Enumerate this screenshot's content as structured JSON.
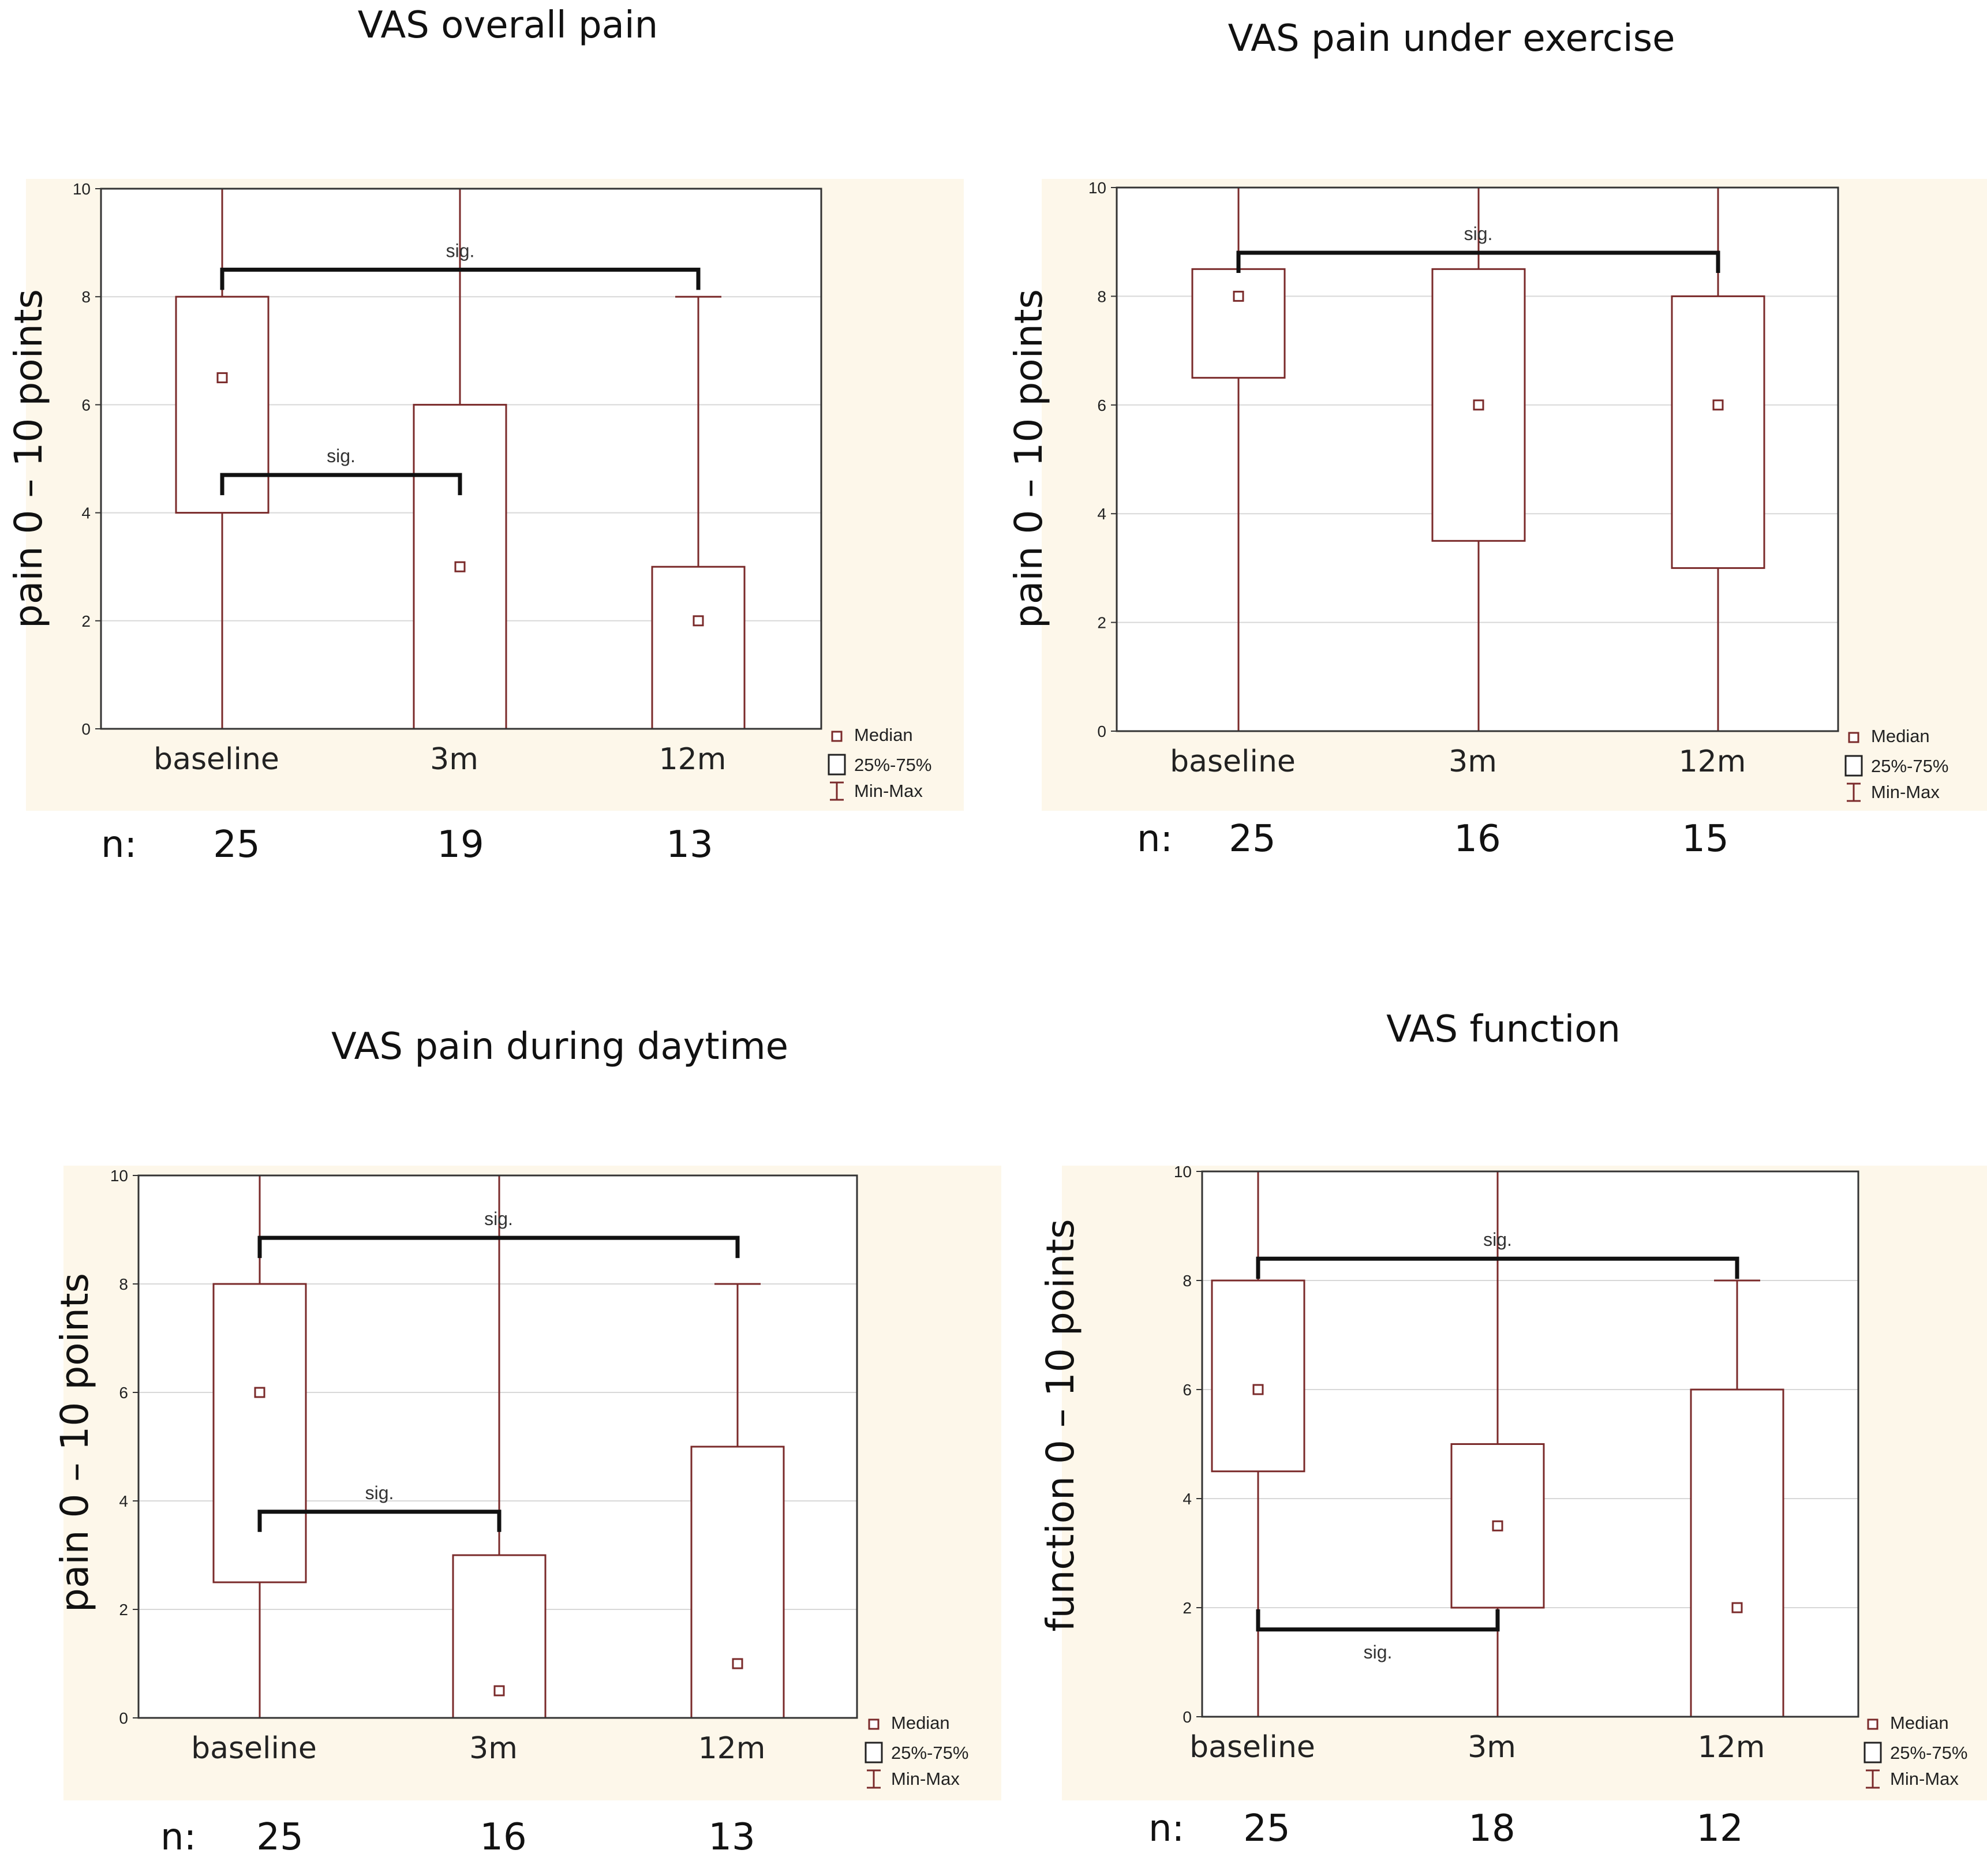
{
  "figure": {
    "legend": {
      "median": "Median",
      "box": "25%-75%",
      "whisker": "Min-Max"
    },
    "colors": {
      "box_stroke": "#7a2a2a",
      "bracket": "#111111",
      "grid": "#d8d8d8",
      "panel_bg": "#fdf7ea"
    }
  },
  "chart_data": [
    {
      "type": "box",
      "title": "VAS overall pain",
      "ylabel": "pain 0 – 10 points",
      "ylim": [
        0,
        10
      ],
      "yticks": [
        "0",
        "2",
        "4",
        "6",
        "8",
        "10"
      ],
      "categories": [
        "baseline",
        "3m",
        "12m"
      ],
      "n_label": "n:",
      "n": [
        "25",
        "19",
        "13"
      ],
      "boxes": [
        {
          "min": 0,
          "q1": 4,
          "median": 6.5,
          "q3": 8,
          "max": 10
        },
        {
          "min": 0,
          "q1": 0,
          "median": 3,
          "q3": 6,
          "max": 10
        },
        {
          "min": 0,
          "q1": 0,
          "median": 2,
          "q3": 3,
          "max": 8
        }
      ],
      "sig": [
        {
          "from": 0,
          "to": 2,
          "y": 8.5,
          "label": "sig."
        },
        {
          "from": 0,
          "to": 1,
          "y": 4.7,
          "label": "sig."
        }
      ]
    },
    {
      "type": "box",
      "title": "VAS pain under exercise",
      "ylabel": "pain 0 – 10 points",
      "ylim": [
        0,
        10
      ],
      "yticks": [
        "0",
        "2",
        "4",
        "6",
        "8",
        "10"
      ],
      "categories": [
        "baseline",
        "3m",
        "12m"
      ],
      "n_label": "n:",
      "n": [
        "25",
        "16",
        "15"
      ],
      "boxes": [
        {
          "min": 0,
          "q1": 6.5,
          "median": 8,
          "q3": 8.5,
          "max": 10
        },
        {
          "min": 0,
          "q1": 3.5,
          "median": 6,
          "q3": 8.5,
          "max": 10
        },
        {
          "min": 0,
          "q1": 3,
          "median": 6,
          "q3": 8,
          "max": 10
        }
      ],
      "sig": [
        {
          "from": 0,
          "to": 2,
          "y": 8.8,
          "label": "sig."
        }
      ]
    },
    {
      "type": "box",
      "title": "VAS pain during daytime",
      "ylabel": "pain 0 – 10 points",
      "ylim": [
        0,
        10
      ],
      "yticks": [
        "0",
        "2",
        "4",
        "6",
        "8",
        "10"
      ],
      "categories": [
        "baseline",
        "3m",
        "12m"
      ],
      "n_label": "n:",
      "n": [
        "25",
        "16",
        "13"
      ],
      "boxes": [
        {
          "min": 0,
          "q1": 2.5,
          "median": 6,
          "q3": 8,
          "max": 10
        },
        {
          "min": 0,
          "q1": 0,
          "median": 0.5,
          "q3": 3,
          "max": 10
        },
        {
          "min": 0,
          "q1": 0,
          "median": 1,
          "q3": 5,
          "max": 8
        }
      ],
      "sig": [
        {
          "from": 0,
          "to": 2,
          "y": 8.85,
          "label": "sig."
        },
        {
          "from": 0,
          "to": 1,
          "y": 3.8,
          "label": "sig."
        }
      ]
    },
    {
      "type": "box",
      "title": "VAS function",
      "ylabel": "function 0 – 10 points",
      "ylim": [
        0,
        10
      ],
      "yticks": [
        "0",
        "2",
        "4",
        "6",
        "8",
        "10"
      ],
      "categories": [
        "baseline",
        "3m",
        "12m"
      ],
      "n_label": "n:",
      "n": [
        "25",
        "18",
        "12"
      ],
      "boxes": [
        {
          "min": 0,
          "q1": 4.5,
          "median": 6,
          "q3": 8,
          "max": 10
        },
        {
          "min": 0,
          "q1": 2,
          "median": 3.5,
          "q3": 5,
          "max": 10
        },
        {
          "min": 0,
          "q1": 0,
          "median": 2,
          "q3": 6,
          "max": 8
        }
      ],
      "sig": [
        {
          "from": 0,
          "to": 2,
          "y": 8.4,
          "label": "sig."
        },
        {
          "from": 0,
          "to": 1,
          "y": 1.6,
          "label": "sig.",
          "below": true
        }
      ]
    }
  ]
}
